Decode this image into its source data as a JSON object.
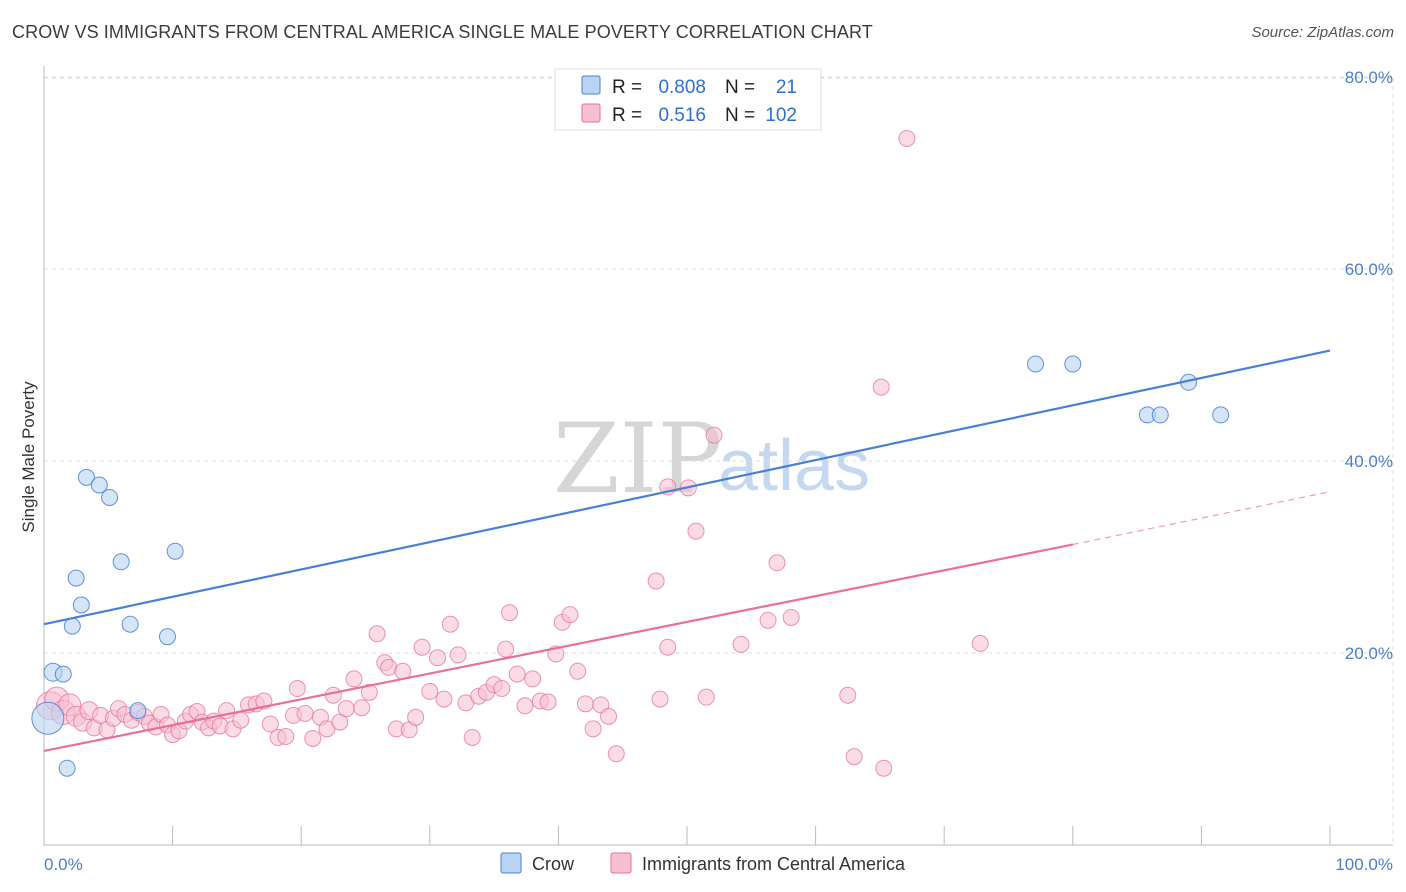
{
  "header": {
    "title": "CROW VS IMMIGRANTS FROM CENTRAL AMERICA SINGLE MALE POVERTY CORRELATION CHART",
    "source": "Source: ZipAtlas.com"
  },
  "watermark": {
    "part1": "ZIP",
    "part2": "atlas"
  },
  "colors": {
    "crow": "#4a80d4",
    "crow_fill": "#b9d3f3",
    "immigrants": "#e8709a",
    "immigrants_fill": "#f7c0d2",
    "tick": "#4a7fd0",
    "grid": "#dddddd"
  },
  "legend": {
    "r_label": "R =",
    "n_label": "N =",
    "rows": [
      {
        "r": "0.808",
        "n": "21"
      },
      {
        "r": "0.516",
        "n": "102"
      }
    ]
  },
  "chart_data": {
    "type": "scatter",
    "title": "CROW VS IMMIGRANTS FROM CENTRAL AMERICA SINGLE MALE POVERTY CORRELATION CHART",
    "xlabel": "",
    "ylabel": "Single Male Poverty",
    "xlim": [
      0,
      100
    ],
    "ylim": [
      0,
      82
    ],
    "x_tick_labels": [
      "0.0%",
      "100.0%"
    ],
    "y_ticks": [
      20,
      40,
      60,
      80
    ],
    "y_tick_labels": [
      "20.0%",
      "40.0%",
      "60.0%",
      "80.0%"
    ],
    "grid": true,
    "legend_position": "top-center",
    "series": [
      {
        "name": "Crow",
        "r": 0.808,
        "n": 21,
        "trend": {
          "x": [
            0,
            100
          ],
          "y": [
            23.0,
            51.5
          ]
        },
        "points": [
          {
            "x": 0.3,
            "y": 13.2,
            "s": 16
          },
          {
            "x": 0.7,
            "y": 18.0,
            "s": 9
          },
          {
            "x": 1.5,
            "y": 17.8,
            "s": 8
          },
          {
            "x": 1.8,
            "y": 8.0,
            "s": 8
          },
          {
            "x": 2.2,
            "y": 22.8,
            "s": 8
          },
          {
            "x": 2.5,
            "y": 27.8,
            "s": 8
          },
          {
            "x": 2.9,
            "y": 25.0,
            "s": 8
          },
          {
            "x": 3.3,
            "y": 38.3,
            "s": 8
          },
          {
            "x": 4.3,
            "y": 37.5,
            "s": 8
          },
          {
            "x": 5.1,
            "y": 36.2,
            "s": 8
          },
          {
            "x": 6.0,
            "y": 29.5,
            "s": 8
          },
          {
            "x": 6.7,
            "y": 23.0,
            "s": 8
          },
          {
            "x": 7.3,
            "y": 14.0,
            "s": 8
          },
          {
            "x": 9.6,
            "y": 21.7,
            "s": 8
          },
          {
            "x": 10.2,
            "y": 30.6,
            "s": 8
          },
          {
            "x": 77.1,
            "y": 50.1,
            "s": 8
          },
          {
            "x": 80.0,
            "y": 50.1,
            "s": 8
          },
          {
            "x": 85.8,
            "y": 44.8,
            "s": 8
          },
          {
            "x": 86.8,
            "y": 44.8,
            "s": 8
          },
          {
            "x": 89.0,
            "y": 48.2,
            "s": 8
          },
          {
            "x": 91.5,
            "y": 44.8,
            "s": 8
          }
        ]
      },
      {
        "name": "Immigrants from Central America",
        "r": 0.516,
        "n": 102,
        "trend": {
          "x": [
            0,
            80
          ],
          "y": [
            9.8,
            31.3
          ],
          "dash_x": [
            80,
            100
          ],
          "dash_y": [
            31.3,
            36.8
          ]
        },
        "points": [
          {
            "x": 0.5,
            "y": 14.5,
            "s": 14
          },
          {
            "x": 1.0,
            "y": 15.2,
            "s": 12
          },
          {
            "x": 1.5,
            "y": 13.8,
            "s": 12
          },
          {
            "x": 2.0,
            "y": 14.6,
            "s": 11
          },
          {
            "x": 2.5,
            "y": 13.4,
            "s": 10
          },
          {
            "x": 3.0,
            "y": 12.8,
            "s": 9
          },
          {
            "x": 3.5,
            "y": 14.0,
            "s": 9
          },
          {
            "x": 3.9,
            "y": 12.2,
            "s": 8
          },
          {
            "x": 4.4,
            "y": 13.5,
            "s": 8
          },
          {
            "x": 4.9,
            "y": 12.0,
            "s": 8
          },
          {
            "x": 5.4,
            "y": 13.2,
            "s": 8
          },
          {
            "x": 5.8,
            "y": 14.2,
            "s": 8
          },
          {
            "x": 6.3,
            "y": 13.6,
            "s": 8
          },
          {
            "x": 6.8,
            "y": 13.0,
            "s": 8
          },
          {
            "x": 7.3,
            "y": 13.8,
            "s": 8
          },
          {
            "x": 7.8,
            "y": 13.4,
            "s": 8
          },
          {
            "x": 8.2,
            "y": 12.7,
            "s": 8
          },
          {
            "x": 8.7,
            "y": 12.3,
            "s": 8
          },
          {
            "x": 9.1,
            "y": 13.6,
            "s": 8
          },
          {
            "x": 9.6,
            "y": 12.5,
            "s": 8
          },
          {
            "x": 10.0,
            "y": 11.5,
            "s": 8
          },
          {
            "x": 10.5,
            "y": 11.9,
            "s": 8
          },
          {
            "x": 11.0,
            "y": 12.9,
            "s": 8
          },
          {
            "x": 11.4,
            "y": 13.6,
            "s": 8
          },
          {
            "x": 11.9,
            "y": 13.9,
            "s": 8
          },
          {
            "x": 12.3,
            "y": 12.8,
            "s": 8
          },
          {
            "x": 12.8,
            "y": 12.2,
            "s": 8
          },
          {
            "x": 13.2,
            "y": 12.9,
            "s": 8
          },
          {
            "x": 13.7,
            "y": 12.4,
            "s": 8
          },
          {
            "x": 14.2,
            "y": 14.0,
            "s": 8
          },
          {
            "x": 14.7,
            "y": 12.1,
            "s": 8
          },
          {
            "x": 15.3,
            "y": 13.0,
            "s": 8
          },
          {
            "x": 15.9,
            "y": 14.6,
            "s": 8
          },
          {
            "x": 16.5,
            "y": 14.7,
            "s": 8
          },
          {
            "x": 17.1,
            "y": 15.0,
            "s": 8
          },
          {
            "x": 17.6,
            "y": 12.6,
            "s": 8
          },
          {
            "x": 18.2,
            "y": 11.2,
            "s": 8
          },
          {
            "x": 18.8,
            "y": 11.3,
            "s": 8
          },
          {
            "x": 19.4,
            "y": 13.5,
            "s": 8
          },
          {
            "x": 19.7,
            "y": 16.3,
            "s": 8
          },
          {
            "x": 20.3,
            "y": 13.7,
            "s": 8
          },
          {
            "x": 20.9,
            "y": 11.1,
            "s": 8
          },
          {
            "x": 21.5,
            "y": 13.3,
            "s": 8
          },
          {
            "x": 22.0,
            "y": 12.1,
            "s": 8
          },
          {
            "x": 22.5,
            "y": 15.6,
            "s": 8
          },
          {
            "x": 23.0,
            "y": 12.8,
            "s": 8
          },
          {
            "x": 23.5,
            "y": 14.2,
            "s": 8
          },
          {
            "x": 24.1,
            "y": 17.3,
            "s": 8
          },
          {
            "x": 24.7,
            "y": 14.3,
            "s": 8
          },
          {
            "x": 25.3,
            "y": 15.9,
            "s": 8
          },
          {
            "x": 25.9,
            "y": 22.0,
            "s": 8
          },
          {
            "x": 26.5,
            "y": 19.0,
            "s": 8
          },
          {
            "x": 26.8,
            "y": 18.5,
            "s": 8
          },
          {
            "x": 27.4,
            "y": 12.1,
            "s": 8
          },
          {
            "x": 27.9,
            "y": 18.1,
            "s": 8
          },
          {
            "x": 28.4,
            "y": 12.0,
            "s": 8
          },
          {
            "x": 28.9,
            "y": 13.3,
            "s": 8
          },
          {
            "x": 29.4,
            "y": 20.6,
            "s": 8
          },
          {
            "x": 30.0,
            "y": 16.0,
            "s": 8
          },
          {
            "x": 30.6,
            "y": 19.5,
            "s": 8
          },
          {
            "x": 31.1,
            "y": 15.2,
            "s": 8
          },
          {
            "x": 31.6,
            "y": 23.0,
            "s": 8
          },
          {
            "x": 32.2,
            "y": 19.8,
            "s": 8
          },
          {
            "x": 32.8,
            "y": 14.8,
            "s": 8
          },
          {
            "x": 33.3,
            "y": 11.2,
            "s": 8
          },
          {
            "x": 33.8,
            "y": 15.5,
            "s": 8
          },
          {
            "x": 34.4,
            "y": 15.9,
            "s": 8
          },
          {
            "x": 35.0,
            "y": 16.7,
            "s": 8
          },
          {
            "x": 35.6,
            "y": 16.3,
            "s": 8
          },
          {
            "x": 35.9,
            "y": 20.4,
            "s": 8
          },
          {
            "x": 36.2,
            "y": 24.2,
            "s": 8
          },
          {
            "x": 36.8,
            "y": 17.8,
            "s": 8
          },
          {
            "x": 37.4,
            "y": 14.5,
            "s": 8
          },
          {
            "x": 38.0,
            "y": 17.3,
            "s": 8
          },
          {
            "x": 38.6,
            "y": 15.0,
            "s": 8
          },
          {
            "x": 39.2,
            "y": 14.9,
            "s": 8
          },
          {
            "x": 39.8,
            "y": 19.9,
            "s": 8
          },
          {
            "x": 40.3,
            "y": 23.2,
            "s": 8
          },
          {
            "x": 40.9,
            "y": 24.0,
            "s": 8
          },
          {
            "x": 41.5,
            "y": 18.1,
            "s": 8
          },
          {
            "x": 42.1,
            "y": 14.7,
            "s": 8
          },
          {
            "x": 42.7,
            "y": 12.1,
            "s": 8
          },
          {
            "x": 43.3,
            "y": 14.6,
            "s": 8
          },
          {
            "x": 43.9,
            "y": 13.4,
            "s": 8
          },
          {
            "x": 44.5,
            "y": 9.5,
            "s": 8
          },
          {
            "x": 47.6,
            "y": 27.5,
            "s": 8
          },
          {
            "x": 47.9,
            "y": 15.2,
            "s": 8
          },
          {
            "x": 48.5,
            "y": 20.6,
            "s": 8
          },
          {
            "x": 50.7,
            "y": 32.7,
            "s": 8
          },
          {
            "x": 51.5,
            "y": 15.4,
            "s": 8
          },
          {
            "x": 48.5,
            "y": 37.3,
            "s": 8
          },
          {
            "x": 50.1,
            "y": 37.2,
            "s": 8
          },
          {
            "x": 54.2,
            "y": 20.9,
            "s": 8
          },
          {
            "x": 52.1,
            "y": 42.7,
            "s": 8
          },
          {
            "x": 56.3,
            "y": 23.4,
            "s": 8
          },
          {
            "x": 57.0,
            "y": 29.4,
            "s": 8
          },
          {
            "x": 58.1,
            "y": 23.7,
            "s": 8
          },
          {
            "x": 62.5,
            "y": 15.6,
            "s": 8
          },
          {
            "x": 63.0,
            "y": 9.2,
            "s": 8
          },
          {
            "x": 65.3,
            "y": 8.0,
            "s": 8
          },
          {
            "x": 65.1,
            "y": 47.7,
            "s": 8
          },
          {
            "x": 67.1,
            "y": 73.6,
            "s": 8
          },
          {
            "x": 72.8,
            "y": 21.0,
            "s": 8
          }
        ]
      }
    ]
  },
  "bottom_legend": [
    {
      "label": "Crow"
    },
    {
      "label": "Immigrants from Central America"
    }
  ]
}
